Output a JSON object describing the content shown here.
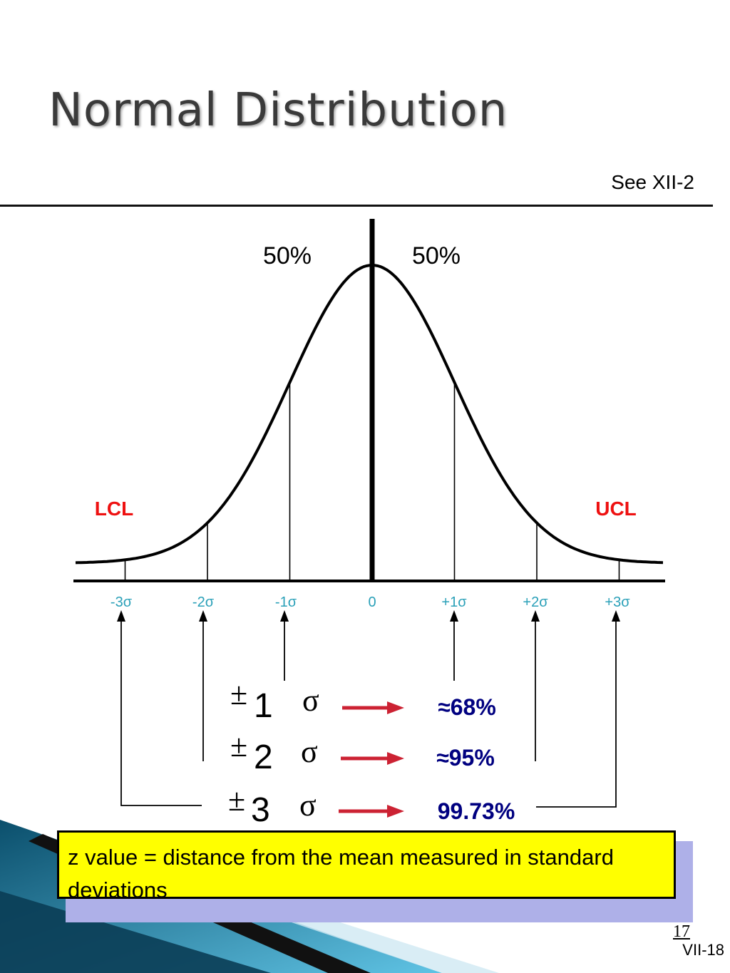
{
  "slide": {
    "title": "Normal Distribution",
    "reference": "See XII-2",
    "page_number": "17",
    "slide_code": "VII-18"
  },
  "diagram": {
    "halves": [
      "50%",
      "50%"
    ],
    "lcl_label": "LCL",
    "ucl_label": "UCL",
    "axis_ticks": [
      "-3σ",
      "-2σ",
      "-1σ",
      "0",
      "+1σ",
      "+2σ",
      "+3σ"
    ],
    "ranges": [
      {
        "pm": "±",
        "k": "1",
        "sigma": "σ",
        "pct": "≈68%"
      },
      {
        "pm": "±",
        "k": "2",
        "sigma": "σ",
        "pct": "≈95%"
      },
      {
        "pm": "±",
        "k": "3",
        "sigma": "σ",
        "pct": "99.73%"
      }
    ],
    "colors": {
      "limit": "#ee1111",
      "tick": "#2aa0b8",
      "arrow": "#cc2233",
      "range_pct": "#000080"
    }
  },
  "note": {
    "text": "z value = distance from the mean measured in standard deviations",
    "background": "#ffff00"
  }
}
